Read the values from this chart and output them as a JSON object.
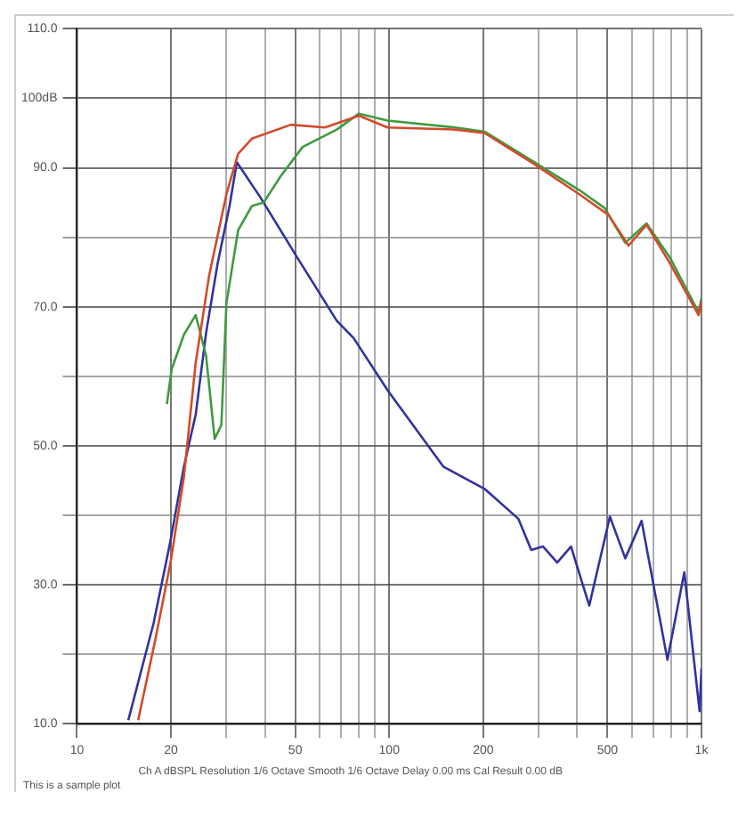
{
  "chart_data": {
    "type": "line",
    "log": "x",
    "grid": true,
    "legend": false,
    "marker": "none",
    "line_style": "solid",
    "xlim": [
      10,
      1000
    ],
    "xticks": [
      10,
      20,
      {
        "value": 30,
        "label": null
      },
      {
        "value": 40,
        "label": null
      },
      50,
      {
        "value": 60,
        "label": null
      },
      {
        "value": 70,
        "label": null
      },
      {
        "value": 80,
        "label": null
      },
      {
        "value": 90,
        "label": null
      },
      100,
      200,
      {
        "value": 300,
        "label": null
      },
      {
        "value": 400,
        "label": null
      },
      500,
      {
        "value": 600,
        "label": null
      },
      {
        "value": 700,
        "label": null
      },
      {
        "value": 800,
        "label": null
      },
      {
        "value": 900,
        "label": null
      },
      {
        "value": 1000,
        "label": "1k"
      }
    ],
    "ylim": [
      10,
      110
    ],
    "yticks": [
      {
        "value": 10,
        "label": "10.0"
      },
      {
        "value": 20,
        "label": null
      },
      {
        "value": 30,
        "label": "30.0"
      },
      {
        "value": 40,
        "label": null
      },
      {
        "value": 50,
        "label": "50.0"
      },
      {
        "value": 60,
        "label": null
      },
      {
        "value": 70,
        "label": "70.0"
      },
      {
        "value": 80,
        "label": null
      },
      {
        "value": 90,
        "label": "90.0"
      },
      {
        "value": 100,
        "label": "100dB"
      },
      {
        "value": 110,
        "label": "110.0"
      }
    ],
    "annotations": [
      "This is a sample plot",
      "Ch A dBSPL  Resolution 1/6 Octave  Smooth 1/6 Octave  Delay 0.00 ms  Cal Result 0.00 dB"
    ],
    "series": [
      {
        "color": "#d24a2a",
        "x": [
          15.7,
          17.8,
          19.9,
          22,
          24,
          26.5,
          30.1,
          32.8,
          36.3,
          48.4,
          62.2,
          80,
          98.8,
          163,
          202,
          292,
          406,
          504,
          584,
          667,
          794,
          979,
          1000
        ],
        "values": [
          10.5,
          22,
          33,
          45.5,
          62,
          74.5,
          86.2,
          92,
          94.2,
          96.2,
          95.8,
          97.5,
          95.8,
          95.5,
          95,
          90.5,
          86.2,
          83.2,
          78.8,
          81.8,
          76.2,
          68.8,
          70.8
        ]
      },
      {
        "color": "#3f9a3f",
        "x": [
          19.4,
          20.1,
          22,
          24,
          25.9,
          27.6,
          29,
          30.1,
          32.8,
          36.3,
          39.6,
          44.9,
          52.8,
          67.9,
          80,
          98.8,
          163,
          202,
          292,
          406,
          490,
          570,
          667,
          794,
          979,
          1000
        ],
        "values": [
          56,
          61,
          66,
          68.8,
          63,
          51,
          53,
          70.5,
          81,
          84.5,
          85,
          88.8,
          93,
          95.5,
          97.8,
          96.8,
          95.8,
          95.2,
          90.8,
          86.8,
          84.2,
          79.2,
          82,
          77,
          69.2,
          71.2
        ]
      },
      {
        "color": "#32329e",
        "x": [
          14.6,
          17.6,
          19.9,
          22,
          24,
          25.9,
          28.2,
          30.8,
          32.5,
          38.6,
          50.9,
          67.9,
          76.9,
          98.8,
          149,
          202,
          259,
          285,
          311,
          345,
          382,
          437,
          509,
          570,
          643,
          778,
          881,
          986,
          1000
        ],
        "values": [
          10.5,
          24.5,
          36.2,
          47,
          54.5,
          66.2,
          76.2,
          84.5,
          90.8,
          85.8,
          77,
          68,
          65.5,
          58,
          47,
          43.8,
          39.5,
          35,
          35.5,
          33.2,
          35.5,
          27,
          39.8,
          33.8,
          39.2,
          19.2,
          31.8,
          11.8,
          18
        ]
      }
    ]
  }
}
